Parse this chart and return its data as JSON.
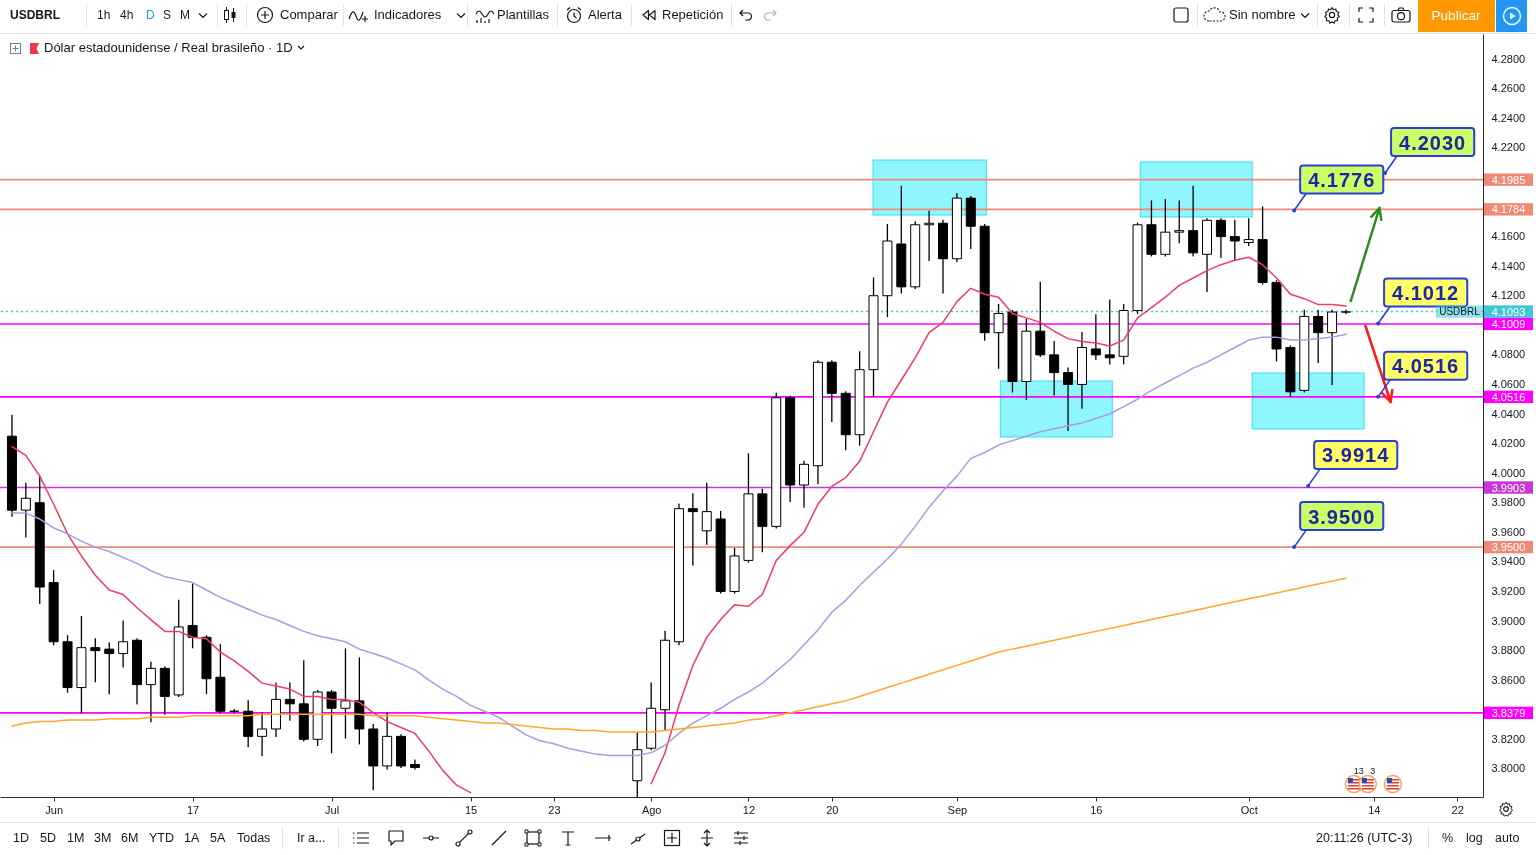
{
  "chart_data": {
    "type": "candlestick",
    "title": "Dólar estadounidense / Real brasileño · 1D",
    "color": "#000000",
    "categories": [
      null,
      null,
      null,
      "Jun",
      null,
      null,
      null,
      null,
      null,
      null,
      null,
      null,
      null,
      "17",
      null,
      null,
      null,
      null,
      null,
      null,
      null,
      null,
      null,
      "Jul",
      null,
      null,
      null,
      null,
      null,
      null,
      null,
      null,
      null,
      "15",
      null,
      null,
      null,
      null,
      null,
      "23",
      null,
      null,
      null,
      null,
      null,
      null,
      "Ago",
      null,
      null,
      null,
      null,
      null,
      null,
      "12",
      null,
      null,
      null,
      null,
      null,
      "20",
      null,
      null,
      null,
      null,
      null,
      null,
      null,
      null,
      "Sep",
      null,
      null,
      null,
      null,
      null,
      null,
      null,
      null,
      null,
      "16",
      null,
      null,
      null,
      null,
      null,
      null,
      null,
      null,
      null,
      null,
      "Oct",
      null,
      null,
      null,
      null,
      null,
      null,
      null,
      null,
      "14",
      null,
      null,
      null,
      null,
      null,
      "22",
      null
    ],
    "ohlc": [
      [
        4.025,
        4.039,
        3.971,
        3.975
      ],
      [
        3.975,
        3.993,
        3.957,
        3.983
      ],
      [
        3.98,
        3.998,
        3.912,
        3.923
      ],
      [
        3.926,
        3.934,
        3.884,
        3.886
      ],
      [
        3.886,
        3.89,
        3.852,
        3.855
      ],
      [
        3.855,
        3.903,
        3.838,
        3.882
      ],
      [
        3.882,
        3.888,
        3.859,
        3.88
      ],
      [
        3.881,
        3.885,
        3.851,
        3.878
      ],
      [
        3.878,
        3.9,
        3.869,
        3.886
      ],
      [
        3.887,
        3.888,
        3.844,
        3.857
      ],
      [
        3.857,
        3.872,
        3.832,
        3.868
      ],
      [
        3.868,
        3.869,
        3.837,
        3.849
      ],
      [
        3.85,
        3.914,
        3.849,
        3.896
      ],
      [
        3.897,
        3.925,
        3.882,
        3.889
      ],
      [
        3.889,
        3.89,
        3.851,
        3.861
      ],
      [
        3.862,
        3.884,
        3.838,
        3.839
      ],
      [
        3.839,
        3.84,
        3.838,
        3.839
      ],
      [
        3.839,
        3.846,
        3.815,
        3.822
      ],
      [
        3.822,
        3.838,
        3.809,
        3.827
      ],
      [
        3.827,
        3.858,
        3.822,
        3.847
      ],
      [
        3.847,
        3.858,
        3.833,
        3.844
      ],
      [
        3.844,
        3.873,
        3.819,
        3.82
      ],
      [
        3.82,
        3.853,
        3.816,
        3.852
      ],
      [
        3.852,
        3.853,
        3.811,
        3.841
      ],
      [
        3.841,
        3.881,
        3.821,
        3.846
      ],
      [
        3.846,
        3.875,
        3.817,
        3.827
      ],
      [
        3.827,
        3.83,
        3.786,
        3.802
      ],
      [
        3.802,
        3.838,
        3.8,
        3.822
      ],
      [
        3.822,
        3.823,
        3.801,
        3.802
      ],
      [
        3.803,
        3.806,
        3.8,
        3.801
      ],
      null,
      null,
      null,
      null,
      null,
      null,
      null,
      null,
      null,
      null,
      null,
      null,
      null,
      null,
      null,
      [
        3.792,
        3.824,
        3.781,
        3.813
      ],
      [
        3.814,
        3.858,
        3.813,
        3.841
      ],
      [
        3.84,
        3.893,
        3.826,
        3.887
      ],
      [
        3.886,
        3.979,
        3.884,
        3.976
      ],
      [
        3.976,
        3.986,
        3.938,
        3.974
      ],
      [
        3.961,
        3.993,
        3.952,
        3.974
      ],
      [
        3.969,
        3.974,
        3.919,
        3.92
      ],
      [
        3.92,
        3.949,
        3.919,
        3.944
      ],
      [
        3.941,
        4.013,
        3.94,
        3.986
      ],
      [
        3.986,
        3.989,
        3.947,
        3.964
      ],
      [
        3.964,
        4.054,
        3.963,
        4.051
      ],
      [
        4.051,
        4.052,
        3.981,
        3.992
      ],
      [
        3.992,
        4.008,
        3.977,
        4.006
      ],
      [
        4.005,
        4.076,
        3.993,
        4.075
      ],
      [
        4.075,
        4.076,
        4.035,
        4.054
      ],
      [
        4.054,
        4.055,
        4.016,
        4.026
      ],
      [
        4.026,
        4.082,
        4.019,
        4.07
      ],
      [
        4.07,
        4.132,
        4.052,
        4.12
      ],
      [
        4.12,
        4.168,
        4.106,
        4.157
      ],
      [
        4.155,
        4.194,
        4.122,
        4.126
      ],
      [
        4.126,
        4.17,
        4.125,
        4.168
      ],
      [
        4.168,
        4.177,
        4.144,
        4.169
      ],
      [
        4.169,
        4.171,
        4.122,
        4.145
      ],
      [
        4.145,
        4.189,
        4.143,
        4.186
      ],
      [
        4.186,
        4.187,
        4.152,
        4.167
      ],
      [
        4.167,
        4.168,
        4.09,
        4.095
      ],
      [
        4.095,
        4.114,
        4.071,
        4.108
      ],
      [
        4.109,
        4.11,
        4.055,
        4.062
      ],
      [
        4.062,
        4.104,
        4.05,
        4.096
      ],
      [
        4.096,
        4.129,
        4.079,
        4.08
      ],
      [
        4.08,
        4.089,
        4.053,
        4.068
      ],
      [
        4.068,
        4.071,
        4.029,
        4.06
      ],
      [
        4.06,
        4.095,
        4.044,
        4.085
      ],
      [
        4.084,
        4.107,
        4.077,
        4.08
      ],
      [
        4.08,
        4.117,
        4.074,
        4.078
      ],
      [
        4.079,
        4.114,
        4.074,
        4.11
      ],
      [
        4.11,
        4.169,
        4.108,
        4.168
      ],
      [
        4.168,
        4.184,
        4.147,
        4.148
      ],
      [
        4.148,
        4.185,
        4.147,
        4.163
      ],
      [
        4.163,
        4.184,
        4.156,
        4.164
      ],
      [
        4.164,
        4.194,
        4.147,
        4.149
      ],
      [
        4.148,
        4.172,
        4.123,
        4.171
      ],
      [
        4.171,
        4.172,
        4.146,
        4.16
      ],
      [
        4.16,
        4.171,
        4.144,
        4.157
      ],
      [
        4.156,
        4.172,
        4.154,
        4.158
      ],
      [
        4.158,
        4.18,
        4.128,
        4.129
      ],
      [
        4.129,
        4.13,
        4.076,
        4.084
      ],
      [
        4.085,
        4.086,
        4.052,
        4.055
      ],
      [
        4.056,
        4.11,
        4.055,
        4.106
      ],
      [
        4.106,
        4.11,
        4.075,
        4.095
      ],
      [
        4.095,
        4.11,
        4.06,
        4.109
      ],
      [
        4.109,
        4.11,
        4.108,
        4.109
      ],
      null,
      null,
      null,
      null,
      null,
      null,
      null,
      null,
      null
    ],
    "series": [
      {
        "type": "line",
        "color": "#f23c5f",
        "values": [
          4.018,
          4.012,
          3.998,
          3.979,
          3.959,
          3.944,
          3.931,
          3.921,
          3.918,
          3.909,
          3.901,
          3.893,
          3.893,
          3.889,
          3.888,
          3.879,
          3.873,
          3.866,
          3.858,
          3.856,
          3.854,
          3.849,
          3.849,
          3.847,
          3.847,
          3.845,
          3.838,
          3.832,
          3.828,
          3.824,
          3.812,
          3.799,
          3.789,
          3.784,
          null,
          null,
          null,
          null,
          null,
          null,
          null,
          null,
          null,
          null,
          null,
          null,
          3.79,
          3.811,
          3.843,
          3.87,
          3.889,
          3.901,
          3.911,
          3.91,
          3.918,
          3.941,
          3.951,
          3.96,
          3.979,
          3.991,
          3.997,
          4.008,
          4.028,
          4.048,
          4.063,
          4.078,
          4.095,
          4.102,
          4.116,
          4.125,
          4.121,
          4.119,
          4.108,
          4.105,
          4.102,
          4.096,
          4.091,
          4.089,
          4.088,
          4.086,
          4.09,
          4.105,
          4.112,
          4.119,
          4.127,
          4.132,
          4.137,
          4.141,
          4.144,
          4.146,
          4.141,
          4.132,
          4.121,
          4.118,
          4.114,
          4.114,
          4.113,
          null,
          null,
          null,
          null,
          null,
          null,
          null,
          null,
          null
        ]
      },
      {
        "type": "line",
        "color": "#a89be3",
        "values": [
          3.973,
          3.973,
          3.969,
          3.963,
          3.959,
          3.954,
          3.95,
          3.947,
          3.943,
          3.939,
          3.934,
          3.93,
          3.928,
          3.926,
          3.921,
          3.916,
          3.912,
          3.908,
          3.904,
          3.901,
          3.897,
          3.893,
          3.89,
          3.888,
          3.886,
          3.881,
          3.878,
          3.875,
          3.871,
          3.867,
          3.86,
          3.854,
          3.849,
          3.843,
          3.839,
          3.835,
          3.829,
          3.823,
          3.819,
          3.817,
          3.814,
          3.812,
          3.81,
          3.809,
          3.809,
          3.809,
          3.811,
          3.816,
          3.824,
          3.831,
          3.836,
          3.841,
          3.847,
          3.852,
          3.858,
          3.866,
          3.874,
          3.884,
          3.894,
          3.906,
          3.914,
          3.924,
          3.933,
          3.942,
          3.952,
          3.964,
          3.977,
          3.988,
          3.998,
          4.01,
          4.014,
          4.019,
          4.022,
          4.025,
          4.028,
          4.03,
          4.032,
          4.034,
          4.037,
          4.04,
          4.045,
          4.05,
          4.056,
          4.061,
          4.066,
          4.071,
          4.075,
          4.08,
          4.085,
          4.09,
          4.092,
          4.092,
          4.09,
          4.09,
          4.091,
          4.092,
          4.094,
          null,
          null,
          null,
          null,
          null,
          null,
          null,
          null,
          null
        ]
      },
      {
        "type": "line",
        "color": "#ffa726",
        "values": [
          3.829,
          3.831,
          3.832,
          3.832,
          3.833,
          3.833,
          3.833,
          3.834,
          3.834,
          3.834,
          3.835,
          3.835,
          3.835,
          3.836,
          3.836,
          3.836,
          3.836,
          3.836,
          3.837,
          3.837,
          3.837,
          3.837,
          3.837,
          3.837,
          3.837,
          3.837,
          3.836,
          3.836,
          3.836,
          3.836,
          3.835,
          3.834,
          3.833,
          3.832,
          3.831,
          3.831,
          3.83,
          3.829,
          3.828,
          3.827,
          3.827,
          3.826,
          3.826,
          3.825,
          3.825,
          3.825,
          3.825,
          3.826,
          3.827,
          3.828,
          3.829,
          3.83,
          3.831,
          3.833,
          3.834,
          3.836,
          3.838,
          3.84,
          3.842,
          3.844,
          3.846,
          3.849,
          3.852,
          3.855,
          3.858,
          3.861,
          3.864,
          3.867,
          3.87,
          3.873,
          3.876,
          3.879,
          3.881,
          3.883,
          3.885,
          3.887,
          3.889,
          3.891,
          3.893,
          3.895,
          3.897,
          3.899,
          3.901,
          3.903,
          3.905,
          3.907,
          3.909,
          3.911,
          3.913,
          3.915,
          3.917,
          3.919,
          3.921,
          3.923,
          3.925,
          3.927,
          3.929,
          null,
          null,
          null,
          null,
          null,
          null,
          null,
          null,
          null
        ]
      }
    ],
    "ylim": [
      3.781,
      4.297
    ],
    "yticks": [
      {
        "value": 3.8,
        "label": "3.8000"
      },
      {
        "value": 3.82,
        "label": "3.8200"
      },
      {
        "value": 3.86,
        "label": "3.8600"
      },
      {
        "value": 3.88,
        "label": "3.8800"
      },
      {
        "value": 3.9,
        "label": "3.9000"
      },
      {
        "value": 3.92,
        "label": "3.9200"
      },
      {
        "value": 3.94,
        "label": "3.9400"
      },
      {
        "value": 3.96,
        "label": "3.9600"
      },
      {
        "value": 3.98,
        "label": "3.9800"
      },
      {
        "value": 4.0,
        "label": "4.0000"
      },
      {
        "value": 4.02,
        "label": "4.0200"
      },
      {
        "value": 4.04,
        "label": "4.0400"
      },
      {
        "value": 4.06,
        "label": "4.0600"
      },
      {
        "value": 4.08,
        "label": "4.0800"
      },
      {
        "value": 4.12,
        "label": "4.1200"
      },
      {
        "value": 4.14,
        "label": "4.1400"
      },
      {
        "value": 4.16,
        "label": "4.1600"
      },
      {
        "value": 4.22,
        "label": "4.2200"
      },
      {
        "value": 4.24,
        "label": "4.2400"
      },
      {
        "value": 4.26,
        "label": "4.2600"
      },
      {
        "value": 4.28,
        "label": "4.2800"
      }
    ],
    "ref_lines": [
      {
        "axis": "y",
        "value": 4.1985,
        "label": "4.1985",
        "color": "#ef8a75"
      },
      {
        "axis": "y",
        "value": 4.1784,
        "label": "4.1784",
        "color": "#ef8a75"
      },
      {
        "axis": "y",
        "value": 4.1093,
        "label": "4.1093",
        "color": "#3fc8d8",
        "line_style": "dotted"
      },
      {
        "axis": "y",
        "value": 4.1009,
        "label": "4.1009",
        "color": "#ff00ff"
      },
      {
        "axis": "y",
        "value": 4.0516,
        "label": "4.0516",
        "color": "#ff00ff"
      },
      {
        "axis": "y",
        "value": 3.9903,
        "label": "3.9903",
        "color": "#c837d6"
      },
      {
        "axis": "y",
        "value": 3.95,
        "label": "3.9500",
        "color": "#ef8a75"
      },
      {
        "axis": "y",
        "value": 3.8379,
        "label": "3.8379",
        "color": "#ff00ff"
      }
    ],
    "annotations": [
      "4.2030",
      {
        "text": "4.1776",
        "y": 4.1776
      },
      {
        "text": "4.1012",
        "y": 4.1012
      },
      {
        "text": "4.0516",
        "y": 4.0516
      },
      {
        "text": "3.9914",
        "y": 3.9914
      },
      {
        "text": "3.9500",
        "y": 3.95
      },
      {
        "text": "USDBRL",
        "y": 4.1093
      },
      "USDBRL",
      "1h",
      "4h",
      "D",
      "S",
      "M",
      "Comparar",
      "Indicadores",
      "Plantillas",
      "Alerta",
      "Repetición",
      "Sin nombre",
      "Publicar",
      "1D",
      "5D",
      "1M",
      "3M",
      "6M",
      "YTD",
      "1A",
      "5A",
      "Todas",
      "Ir a...",
      "20:11:26 (UTC-3)",
      "%",
      "log",
      "auto",
      "13",
      "3"
    ]
  }
}
